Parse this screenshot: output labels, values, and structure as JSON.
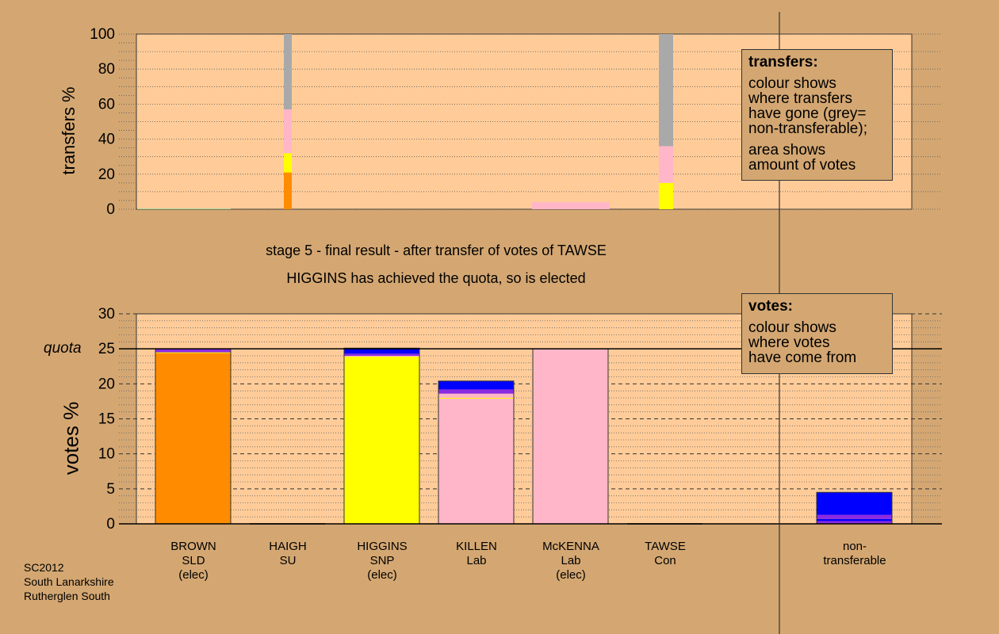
{
  "chart_data": [
    {
      "type": "bar",
      "stacked": true,
      "ylabel": "transfers %",
      "ylim": [
        0,
        100
      ],
      "yticks": [
        0,
        20,
        40,
        60,
        80,
        100
      ],
      "bars": [
        {
          "segments": [
            {
              "color": "#b3d99b",
              "value": 0.5
            }
          ]
        },
        {
          "segments": [
            {
              "color": "#ff8c00",
              "value": 21
            },
            {
              "color": "#ffff00",
              "value": 11
            },
            {
              "color": "#ffb6c8",
              "value": 25
            },
            {
              "color": "#a9a9a9",
              "value": 43
            }
          ]
        },
        {
          "segments": []
        },
        {
          "segments": [
            {
              "color": "#ffb6c8",
              "value": 4
            }
          ]
        },
        {
          "segments": [
            {
              "color": "#ffff00",
              "value": 15
            },
            {
              "color": "#ffb6c8",
              "value": 21
            },
            {
              "color": "#a9a9a9",
              "value": 64
            }
          ]
        },
        {
          "segments": []
        }
      ],
      "legend": {
        "title": "transfers:",
        "text1": "colour shows\nwhere transfers\nhave gone (grey=\nnon-transferable);",
        "text2": "area shows\namount of votes"
      }
    },
    {
      "type": "bar",
      "stacked": true,
      "ylabel": "votes %",
      "ylim": [
        0,
        30
      ],
      "yticks": [
        0,
        5,
        10,
        15,
        20,
        25,
        30
      ],
      "quota": 25,
      "quota_label": "quota",
      "categories": [
        {
          "name": "BROWN",
          "party": "SLD",
          "note": "(elec)"
        },
        {
          "name": "HAIGH",
          "party": "SU",
          "note": ""
        },
        {
          "name": "HIGGINS",
          "party": "SNP",
          "note": "(elec)"
        },
        {
          "name": "KILLEN",
          "party": "Lab",
          "note": ""
        },
        {
          "name": "McKENNA",
          "party": "Lab",
          "note": "(elec)"
        },
        {
          "name": "TAWSE",
          "party": "Con",
          "note": ""
        }
      ],
      "bars": [
        [
          {
            "color": "#ff8c00",
            "value": 24.4
          },
          {
            "color": "#ffff00",
            "value": 0.1
          },
          {
            "color": "#8a2be2",
            "value": 0.5
          }
        ],
        [],
        [
          {
            "color": "#ffff00",
            "value": 23.9
          },
          {
            "color": "#ffb6c8",
            "value": 0.1
          },
          {
            "color": "#8a2be2",
            "value": 0.3
          },
          {
            "color": "#0000ff",
            "value": 0.8
          }
        ],
        [
          {
            "color": "#ffb6c8",
            "value": 17.9
          },
          {
            "color": "#ffff00",
            "value": 0.1
          },
          {
            "color": "#ffb6c8",
            "value": 0.6
          },
          {
            "color": "#8a2be2",
            "value": 0.6
          },
          {
            "color": "#0000ff",
            "value": 1.2
          }
        ],
        [
          {
            "color": "#ffb6c8",
            "value": 25.0
          }
        ],
        []
      ],
      "nontransferable": {
        "label": "non-\ntransferable",
        "segments": [
          {
            "color": "#8a2be2",
            "value": 0.4
          },
          {
            "color": "#0000ff",
            "value": 0.3
          },
          {
            "color": "#8a2be2",
            "value": 0.6
          },
          {
            "color": "#0000ff",
            "value": 3.2
          }
        ]
      },
      "legend": {
        "title": "votes:",
        "text1": "colour shows\nwhere votes\nhave come from"
      }
    }
  ],
  "caption1": "stage 5 - final result - after transfer of votes of TAWSE",
  "caption2": "HIGGINS has achieved the quota, so is elected",
  "footer": "SC2012\nSouth Lanarkshire\nRutherglen South",
  "colors": {
    "background": "#d4a772",
    "plot": "#ffcc99"
  }
}
